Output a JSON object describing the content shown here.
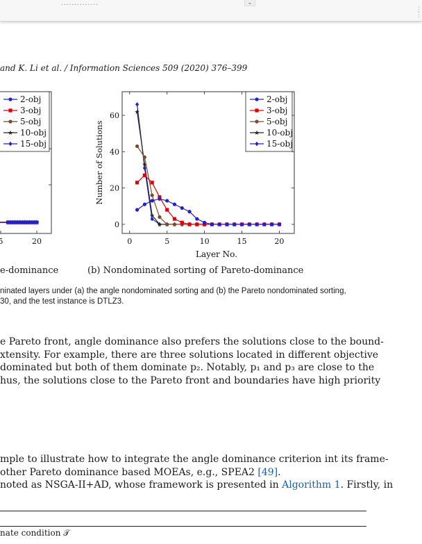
{
  "toolbar": {
    "fragment": "..............",
    "dropdown_icon": "chevron-down-icon"
  },
  "scroll_handle_icon": "drag-handle-icon",
  "header": "and K. Li et al. / Information Sciences 509 (2020) 376–399",
  "figure": {
    "caption_a": "e-dominance",
    "caption_b": "(b) Nondominated sorting of Pareto-dominance",
    "caption_lines": [
      "ninated layers under (a) the angle nondominated sorting and (b) the Pareto nondominated sorting,",
      "30, and the test instance is DTLZ3."
    ]
  },
  "chart_data": [
    {
      "type": "line",
      "panel": "a",
      "title": "",
      "xlabel": "",
      "ylabel": "",
      "x_ticks_visible": [
        "5",
        "20"
      ],
      "legend": [
        "2-obj",
        "3-obj",
        "5-obj",
        "10-obj",
        "15-obj"
      ],
      "series_x_visible": [
        8,
        9,
        10,
        11,
        12,
        13,
        14,
        15,
        16,
        17,
        18,
        19,
        20
      ],
      "series_value": 0
    },
    {
      "type": "line",
      "panel": "b",
      "title": "",
      "xlabel": "Layer No.",
      "ylabel": "Number of Solutions",
      "xlim": [
        -1,
        22
      ],
      "ylim": [
        -5,
        73
      ],
      "x_ticks": [
        0,
        5,
        10,
        15,
        20
      ],
      "y_ticks": [
        0,
        20,
        40,
        60
      ],
      "legend_position": "top-right",
      "x": [
        1,
        2,
        3,
        4,
        5,
        6,
        7,
        8,
        9,
        10,
        11,
        12,
        13,
        14,
        15,
        16,
        17,
        18,
        19,
        20
      ],
      "series": [
        {
          "name": "2-obj",
          "color": "#1f1fd6",
          "marker": "circle",
          "values": [
            8,
            11,
            13,
            14,
            13,
            11,
            9,
            7,
            3,
            1,
            0,
            0,
            0,
            0,
            0,
            0,
            0,
            0,
            0,
            0
          ]
        },
        {
          "name": "3-obj",
          "color": "#e00000",
          "marker": "square",
          "values": [
            23,
            27,
            23,
            15,
            8,
            3,
            1,
            0,
            0,
            0,
            0,
            0,
            0,
            0,
            0,
            0,
            0,
            0,
            0,
            0
          ]
        },
        {
          "name": "5-obj",
          "color": "#7b4a2a",
          "marker": "circle",
          "values": [
            43,
            37,
            16,
            4,
            0,
            0,
            0,
            0,
            0,
            0,
            0,
            0,
            0,
            0,
            0,
            0,
            0,
            0,
            0,
            0
          ]
        },
        {
          "name": "10-obj",
          "color": "#222222",
          "marker": "star",
          "values": [
            62,
            33,
            5,
            0,
            0,
            0,
            0,
            0,
            0,
            0,
            0,
            0,
            0,
            0,
            0,
            0,
            0,
            0,
            0,
            0
          ]
        },
        {
          "name": "15-obj",
          "color": "#1f1fd6",
          "marker": "diamond",
          "values": [
            66,
            31,
            3,
            0,
            0,
            0,
            0,
            0,
            0,
            0,
            0,
            0,
            0,
            0,
            0,
            0,
            0,
            0,
            0,
            0
          ]
        }
      ]
    }
  ],
  "body": {
    "p1": [
      "e Pareto front, angle dominance also prefers the solutions close to the bound-",
      "xtensity. For example, there are three solutions located in different objective",
      "dominated but both of them dominate p₂. Notably, p₁ and p₃ are close to the",
      "hus, the solutions close to the Pareto front and boundaries have high priority"
    ],
    "p2": {
      "line1": "mple to illustrate how to integrate the angle dominance criterion int its frame-",
      "line2_pre": "other Pareto dominance based MOEAs, e.g., SPEA2 ",
      "line2_link": "[49]",
      "line2_post": ".",
      "line3_pre": "noted as NSGA-II+AD, whose framework is presented in ",
      "line3_link": "Algorithm 1",
      "line3_post": ". Firstly, in"
    }
  },
  "algorithm": {
    "line": "nate condition 𝒯"
  }
}
